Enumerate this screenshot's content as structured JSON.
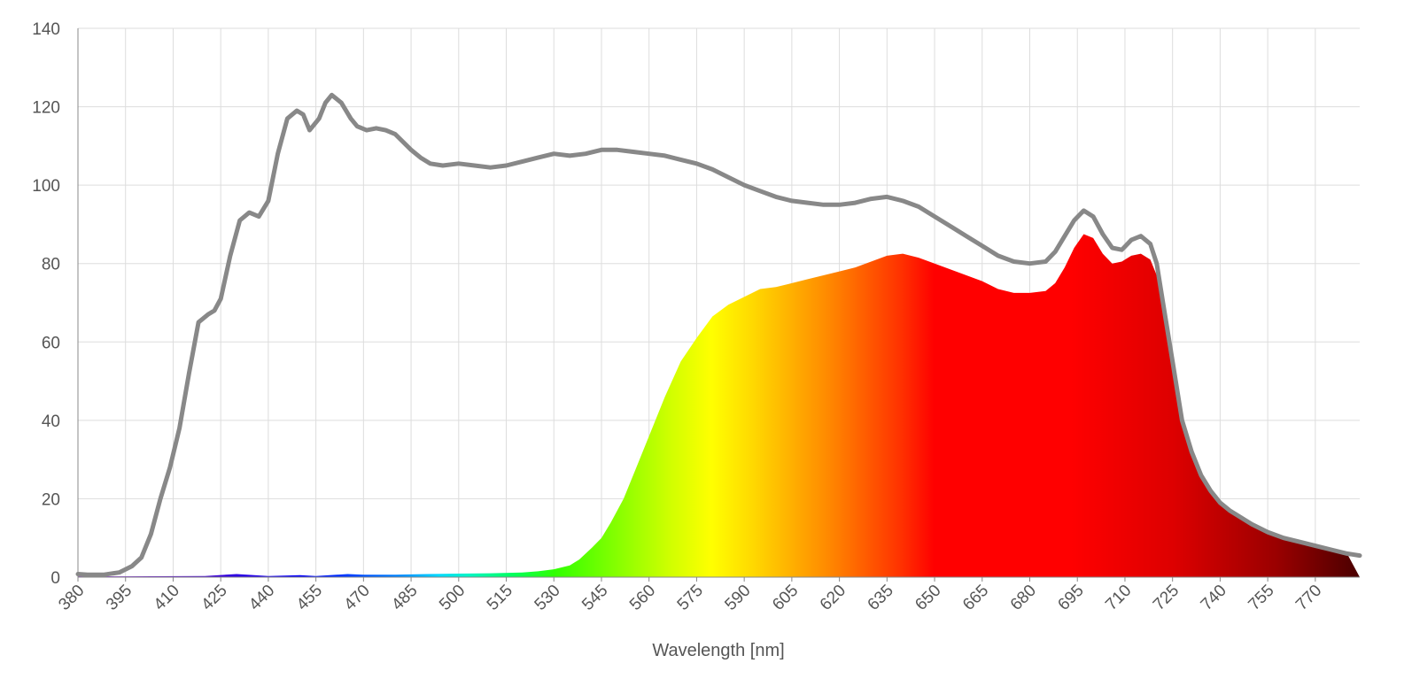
{
  "chart_data": {
    "type": "area",
    "title": "",
    "xlabel": "Wavelength [nm]",
    "ylabel": "",
    "xlim": [
      380,
      784
    ],
    "ylim": [
      0,
      140
    ],
    "grid": true,
    "legend": "none",
    "x_ticks": [
      380,
      395,
      410,
      425,
      440,
      455,
      470,
      485,
      500,
      515,
      530,
      545,
      560,
      575,
      590,
      605,
      620,
      635,
      650,
      665,
      680,
      695,
      710,
      725,
      740,
      755,
      770
    ],
    "y_ticks": [
      0,
      20,
      40,
      60,
      80,
      100,
      120,
      140
    ],
    "colors": {
      "outline": "#888888",
      "grid": "#dddddd",
      "axis_text": "#555555"
    },
    "series": [
      {
        "type": "line",
        "color": "#888888",
        "x": [
          380,
          383,
          388,
          393,
          397,
          400,
          403,
          406,
          409,
          412,
          415,
          418,
          421,
          423,
          425,
          428,
          431,
          434,
          437,
          440,
          443,
          446,
          449,
          451,
          453,
          456,
          458,
          460,
          463,
          466,
          468,
          471,
          474,
          477,
          480,
          485,
          488,
          491,
          495,
          500,
          505,
          510,
          515,
          520,
          525,
          530,
          535,
          540,
          545,
          550,
          555,
          560,
          565,
          570,
          575,
          580,
          585,
          590,
          595,
          600,
          605,
          610,
          615,
          620,
          625,
          630,
          635,
          640,
          645,
          650,
          655,
          660,
          665,
          670,
          675,
          680,
          685,
          688,
          691,
          694,
          697,
          700,
          703,
          706,
          709,
          712,
          715,
          718,
          720,
          722,
          725,
          728,
          731,
          734,
          737,
          740,
          743,
          746,
          750,
          755,
          760,
          765,
          770,
          775,
          780,
          784
        ],
        "values": [
          0.8,
          0.6,
          0.6,
          1.2,
          2.8,
          5,
          11,
          20,
          28,
          38,
          52,
          65,
          67,
          68,
          71,
          82,
          91,
          93,
          92,
          96,
          108,
          117,
          119,
          118,
          114,
          117,
          121,
          123,
          121,
          117,
          115,
          114,
          114.5,
          114,
          113,
          109,
          107,
          105.5,
          105,
          105.5,
          105,
          104.5,
          105,
          106,
          107,
          108,
          107.5,
          108,
          109,
          109,
          108.5,
          108,
          107.5,
          106.5,
          105.5,
          104,
          102,
          100,
          98.5,
          97,
          96,
          95.5,
          95,
          95,
          95.5,
          96.5,
          97,
          96,
          94.5,
          92,
          89.5,
          87,
          84.5,
          82,
          80.5,
          80,
          80.5,
          83,
          87,
          91,
          93.5,
          92,
          87.5,
          84,
          83.5,
          86,
          87,
          85,
          80,
          70,
          55,
          40,
          32,
          26,
          22,
          19,
          17,
          15.5,
          13.5,
          11.5,
          10,
          9,
          8,
          7,
          6,
          5.5
        ]
      },
      {
        "type": "area",
        "gradient": "visible-spectrum",
        "x": [
          380,
          395,
          420,
          430,
          440,
          450,
          455,
          465,
          470,
          480,
          490,
          500,
          510,
          520,
          525,
          530,
          535,
          538,
          542,
          545,
          548,
          552,
          556,
          560,
          565,
          570,
          575,
          580,
          585,
          590,
          595,
          600,
          605,
          610,
          615,
          620,
          625,
          630,
          635,
          640,
          645,
          650,
          655,
          660,
          665,
          670,
          675,
          680,
          685,
          688,
          691,
          694,
          697,
          700,
          703,
          706,
          709,
          712,
          715,
          718,
          720,
          722,
          725,
          728,
          731,
          734,
          737,
          740,
          743,
          746,
          750,
          755,
          760,
          765,
          770,
          775,
          780,
          784
        ],
        "values": [
          0.2,
          0.2,
          0.3,
          0.8,
          0.3,
          0.5,
          0.3,
          0.8,
          0.6,
          0.6,
          0.8,
          0.9,
          1,
          1.2,
          1.5,
          2,
          3,
          4.5,
          7.5,
          10,
          14,
          20,
          28,
          36,
          46,
          55,
          61,
          66.5,
          69.5,
          71.5,
          73.5,
          74,
          75,
          76,
          77,
          78,
          79,
          80.5,
          82,
          82.5,
          81.5,
          80,
          78.5,
          77,
          75.5,
          73.5,
          72.5,
          72.5,
          73,
          75,
          79,
          84,
          87.5,
          86.5,
          82.5,
          80,
          80.5,
          82,
          82.5,
          81,
          77,
          68,
          54,
          40,
          32,
          26,
          22,
          19,
          17,
          15.5,
          13.5,
          11.5,
          10,
          9,
          8,
          7,
          6,
          0
        ]
      }
    ]
  }
}
